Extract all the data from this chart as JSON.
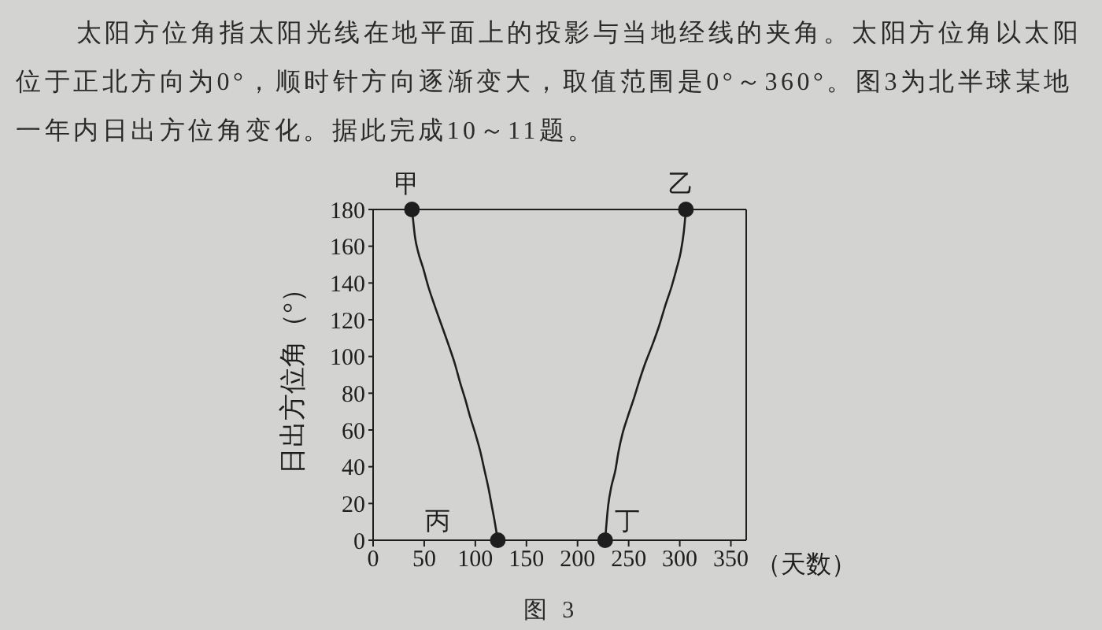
{
  "chart_data": {
    "type": "line",
    "annotations": [
      "太阳方位角指太阳光线在地平面上的投影与当地经线的夹角。太阳方位角以太阳位于正北方向为0°，顺时针方向逐渐变大，取值范围是0°～360°。图3为北半球某地一年内日出方位角变化。据此完成10～11题。",
      "图 3",
      {
        "text": "甲",
        "x": 38,
        "y": 180
      },
      {
        "text": "乙",
        "x": 306,
        "y": 180
      },
      {
        "text": "丙",
        "x": 122,
        "y": 0
      },
      {
        "text": "丁",
        "x": 227,
        "y": 0
      }
    ],
    "xlabel": "（天数）",
    "ylabel": "日出方位角（°）",
    "xlim": [
      0,
      365
    ],
    "xticks": [
      0,
      50,
      100,
      150,
      200,
      250,
      300,
      350
    ],
    "ylim": [
      0,
      180
    ],
    "yticks": [
      0,
      20,
      40,
      60,
      80,
      100,
      120,
      140,
      160,
      180
    ],
    "series": [
      {
        "color": "#1e1e1e",
        "x": [
          38,
          39,
          41,
          44,
          49,
          54,
          60,
          67,
          74,
          80,
          85,
          90,
          95,
          100,
          105,
          109,
          113,
          116,
          119,
          122
        ],
        "values": [
          180,
          175,
          165,
          157,
          148,
          138,
          128,
          117,
          106,
          96,
          86,
          77,
          67,
          58,
          48,
          38,
          28,
          19,
          10,
          0
        ]
      },
      {
        "color": "#1e1e1e",
        "x": [
          227,
          230,
          233,
          237,
          240,
          244,
          249,
          255,
          260,
          266,
          273,
          280,
          286,
          292,
          297,
          301,
          304,
          306
        ],
        "values": [
          0,
          19,
          29,
          38,
          48,
          58,
          67,
          77,
          86,
          96,
          106,
          117,
          128,
          138,
          148,
          157,
          168,
          180
        ]
      },
      {
        "type": "scatter",
        "color": "#1e1e1e",
        "marker": "circle",
        "x": [
          38,
          306,
          122,
          227
        ],
        "values": [
          180,
          180,
          0,
          0
        ]
      }
    ]
  }
}
